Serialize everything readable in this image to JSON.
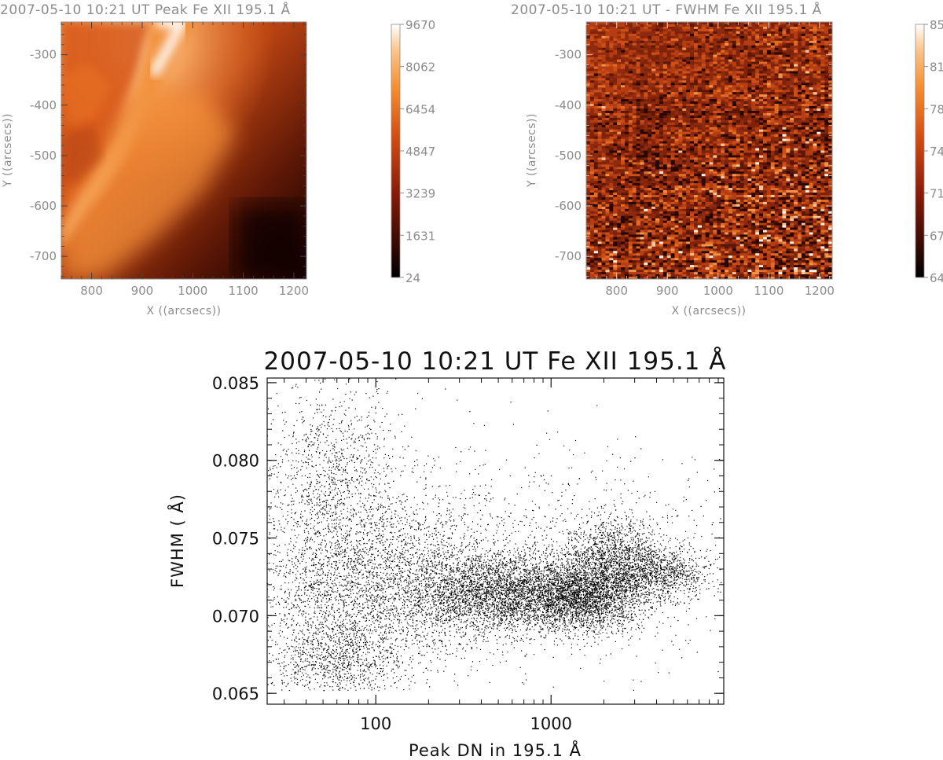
{
  "chart_data": [
    {
      "type": "heatmap",
      "title": "2007-05-10 10:21 UT Peak Fe XII 195.1  Å",
      "xlabel": "X ((arcsecs))",
      "ylabel": "Y ((arcsecs))",
      "xlim": [
        740,
        1225
      ],
      "ylim": [
        -745,
        -235
      ],
      "xticks": [
        800,
        900,
        1000,
        1100,
        1200
      ],
      "yticks": [
        -700,
        -600,
        -500,
        -400,
        -300
      ],
      "colorbar": {
        "ticks": [
          "24",
          "1631",
          "3239",
          "4847",
          "6454",
          "8062",
          "9670"
        ],
        "range": [
          24,
          9670
        ],
        "colormap": "red-temperature"
      }
    },
    {
      "type": "heatmap",
      "title": "2007-05-10 10:21 UT - FWHM Fe XII 195.1  Å",
      "xlabel": "X ((arcsecs))",
      "ylabel": "Y ((arcsecs))",
      "xlim": [
        740,
        1225
      ],
      "ylim": [
        -745,
        -235
      ],
      "xticks": [
        800,
        900,
        1000,
        1100,
        1200
      ],
      "yticks": [
        -700,
        -600,
        -500,
        -400,
        -300
      ],
      "colorbar": {
        "ticks": [
          "64",
          "67",
          "71",
          "74",
          "78",
          "81",
          "85"
        ],
        "range": [
          64,
          85
        ],
        "colormap": "red-temperature"
      }
    },
    {
      "type": "scatter",
      "title": "2007-05-10 10:21 UT Fe XII 195.1  Å",
      "xlabel": "Peak DN in 195.1  Å",
      "ylabel": "FWHM ( Å)",
      "xscale": "log",
      "xlim": [
        24,
        9670
      ],
      "ylim": [
        0.0643,
        0.0853
      ],
      "xticks": [
        100,
        1000
      ],
      "xtick_labels": [
        "100",
        "1000"
      ],
      "yticks": [
        0.065,
        0.07,
        0.075,
        0.08,
        0.085
      ],
      "ytick_labels": [
        "0.065",
        "0.070",
        "0.075",
        "0.080",
        "0.085"
      ],
      "clusters": [
        {
          "x_center": 60,
          "y_center": 0.0715,
          "x_spread_dex": 0.22,
          "y_spread": 0.0042,
          "count": 2600
        },
        {
          "x_center": 60,
          "y_center": 0.067,
          "x_spread_dex": 0.18,
          "y_spread": 0.0012,
          "count": 500
        },
        {
          "x_center": 55,
          "y_center": 0.08,
          "x_spread_dex": 0.2,
          "y_spread": 0.0025,
          "count": 700
        },
        {
          "x_center": 180,
          "y_center": 0.0725,
          "x_spread_dex": 0.25,
          "y_spread": 0.003,
          "count": 1400
        },
        {
          "x_center": 500,
          "y_center": 0.0715,
          "x_spread_dex": 0.25,
          "y_spread": 0.0013,
          "count": 3200
        },
        {
          "x_center": 1500,
          "y_center": 0.0712,
          "x_spread_dex": 0.18,
          "y_spread": 0.0011,
          "count": 2600
        },
        {
          "x_center": 2300,
          "y_center": 0.0735,
          "x_spread_dex": 0.15,
          "y_spread": 0.0014,
          "count": 1600
        },
        {
          "x_center": 4500,
          "y_center": 0.0727,
          "x_spread_dex": 0.13,
          "y_spread": 0.0008,
          "count": 700
        },
        {
          "x_center": 1200,
          "y_center": 0.074,
          "x_spread_dex": 0.55,
          "y_spread": 0.0035,
          "count": 900
        }
      ]
    }
  ]
}
